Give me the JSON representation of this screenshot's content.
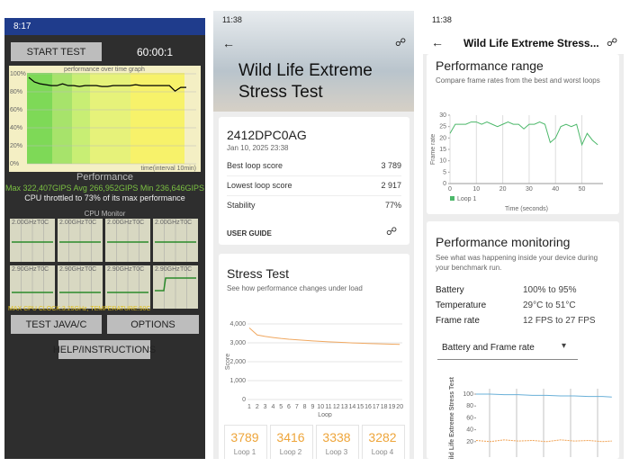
{
  "screens": [
    {
      "status_time": "8:17",
      "start_button": "START TEST",
      "timer": "60:00:1",
      "graph": {
        "title": "performance over time graph",
        "y_labels": [
          "100%",
          "80%",
          "60%",
          "40%",
          "20%",
          "0%"
        ],
        "x_label": "time(interval 10min)",
        "ylim": [
          0,
          100
        ],
        "values": [
          95,
          90,
          88,
          87,
          86,
          86,
          88,
          86,
          86,
          85,
          86,
          86,
          86,
          85,
          85,
          86,
          86,
          86,
          86,
          87,
          86,
          86,
          86,
          86,
          86,
          86,
          80,
          84,
          84
        ]
      },
      "performance_title": "Performance",
      "stats": "Max 322,407GIPS  Avg 266,952GIPS  Min 236,646GIPS",
      "throttle": "CPU throttled to 73% of its max performance",
      "cpu_monitor": "CPU Monitor",
      "cores": [
        {
          "freq": "2.00GHz",
          "temp": "T0C"
        },
        {
          "freq": "2.00GHz",
          "temp": "T0C"
        },
        {
          "freq": "2.00GHz",
          "temp": "T0C"
        },
        {
          "freq": "2.00GHz",
          "temp": "T0C"
        },
        {
          "freq": "2.90GHz",
          "temp": "T0C"
        },
        {
          "freq": "2.90GHz",
          "temp": "T0C"
        },
        {
          "freq": "2.90GHz",
          "temp": "T0C"
        },
        {
          "freq": "2.90GHz",
          "temp": "T0C"
        }
      ],
      "clock_info": "MAX CPU CLOCK:3.25GHz, TEMPERATURE:50C",
      "buttons": [
        "TEST JAVA/C",
        "OPTIONS",
        "HELP/INSTRUCTIONS"
      ]
    },
    {
      "status_time": "11:38",
      "title_line1": "Wild Life Extreme",
      "title_line2": "Stress Test",
      "device": "2412DPC0AG",
      "date": "Jan 10, 2025 23:38",
      "rows": [
        [
          "Best loop score",
          "3 789"
        ],
        [
          "Lowest loop score",
          "2 917"
        ],
        [
          "Stability",
          "77%"
        ]
      ],
      "user_guide": "USER GUIDE",
      "stress": {
        "title": "Stress Test",
        "subtitle": "See how performance changes under load",
        "y_label": "Score",
        "x_label": "Loop",
        "ylim": [
          0,
          4000
        ],
        "yticks": [
          {
            "value": 4000,
            "label": "4,000"
          },
          {
            "value": 3000,
            "label": "3,000"
          },
          {
            "value": 2000,
            "label": "2,000"
          },
          {
            "value": 1000,
            "label": "1,000"
          },
          0
        ],
        "loops": [
          1,
          2,
          3,
          4,
          5,
          6,
          7,
          8,
          9,
          10,
          11,
          12,
          13,
          14,
          15,
          16,
          17,
          18,
          19,
          20
        ],
        "values": [
          3789,
          3416,
          3338,
          3282,
          3230,
          3190,
          3160,
          3130,
          3100,
          3075,
          3055,
          3035,
          3015,
          2995,
          2980,
          2965,
          2950,
          2940,
          2928,
          2917
        ],
        "box_labels": [
          "Loop 1",
          "Loop 2",
          "Loop 3",
          "Loop 4"
        ]
      }
    },
    {
      "status_time": "11:38",
      "header": "Wild Life Extreme Stress...",
      "range": {
        "title": "Performance range",
        "subtitle": "Compare frame rates from the best and worst loops",
        "y_label": "Frame rate",
        "x_label": "Time (seconds)",
        "legend": "Loop 1",
        "ylim": [
          0,
          30
        ],
        "xlim": [
          0,
          58
        ],
        "yticks": [
          30,
          25,
          20,
          15,
          10,
          5,
          0
        ],
        "xticks": [
          0,
          10,
          20,
          30,
          40,
          50
        ],
        "x": [
          0,
          2,
          4,
          6,
          8,
          10,
          12,
          14,
          16,
          18,
          20,
          22,
          24,
          26,
          28,
          30,
          32,
          34,
          36,
          38,
          40,
          42,
          44,
          46,
          48,
          50,
          52,
          54,
          56
        ],
        "values": [
          22,
          26,
          26,
          26,
          27,
          27,
          26,
          27,
          26,
          25,
          26,
          27,
          26,
          26,
          24,
          26,
          26,
          27,
          26,
          18,
          20,
          25,
          26,
          25,
          26,
          17,
          22,
          19,
          17
        ]
      },
      "monitoring": {
        "title": "Performance monitoring",
        "subtitle": "See what was happening inside your device during your benchmark run.",
        "rows": [
          [
            "Battery",
            "100% to 95%"
          ],
          [
            "Temperature",
            "29°C to 51°C"
          ],
          [
            "Frame rate",
            "12 FPS to 27 FPS"
          ]
        ],
        "dropdown": "Battery and Frame rate",
        "side_label": "Wild Life Extreme Stress Test",
        "ylim": [
          0,
          100
        ],
        "yticks": [
          100,
          80,
          60,
          40,
          20
        ],
        "x": [
          0,
          6,
          12,
          18,
          24,
          30,
          36,
          42,
          48,
          54,
          58
        ],
        "battery": [
          100,
          100,
          99,
          99,
          98,
          98,
          97,
          97,
          96,
          96,
          95
        ],
        "frame_rate": [
          22,
          20,
          23,
          21,
          22,
          20,
          23,
          21,
          22,
          20,
          21
        ]
      }
    }
  ]
}
